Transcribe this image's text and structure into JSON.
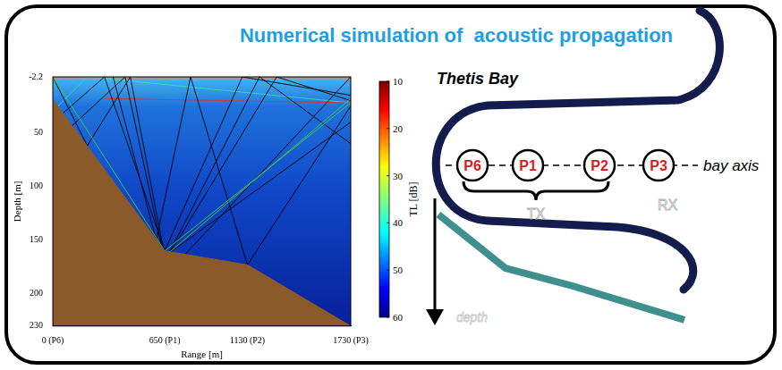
{
  "title": "Numerical simulation of  acoustic propagation",
  "chart_data": {
    "type": "line",
    "xlabel": "Range [m]",
    "ylabel": "Depth [m]",
    "xlim": [
      0,
      1730
    ],
    "xticks": [
      {
        "value": 0,
        "label": "0 (P6)"
      },
      {
        "value": 650,
        "label": "650 (P1)"
      },
      {
        "value": 1130,
        "label": "1130 (P2)"
      },
      {
        "value": 1730,
        "label": "1730 (P3)"
      }
    ],
    "ylim": [
      -2.2,
      230
    ],
    "yticks": [
      -2.2,
      50,
      100,
      150,
      200,
      230
    ],
    "grid": false,
    "seabed": {
      "color": "#8b5a2b",
      "x": [
        0,
        650,
        1130,
        1730
      ],
      "y": [
        19,
        160,
        173,
        230
      ]
    },
    "rays": [
      {
        "color": "#40d040",
        "x": [
          1730,
          650,
          0
        ],
        "y": [
          22,
          160,
          -2.2
        ]
      },
      {
        "color": "#40d040",
        "x": [
          650,
          1730
        ],
        "y": [
          165,
          18
        ]
      },
      {
        "color": "#000000",
        "x": [
          1730,
          1100,
          650,
          300,
          0
        ],
        "y": [
          15,
          -2.2,
          160,
          -2.2,
          40
        ]
      },
      {
        "color": "#000000",
        "x": [
          1730,
          650,
          450,
          200,
          0
        ],
        "y": [
          40,
          165,
          -2.2,
          62,
          -2.2
        ]
      },
      {
        "color": "#000000",
        "x": [
          1730,
          1300,
          650,
          420,
          0
        ],
        "y": [
          20,
          -2.2,
          170,
          -2.2,
          60
        ]
      },
      {
        "color": "#000000",
        "x": [
          650,
          1200,
          1730
        ],
        "y": [
          170,
          -2.2,
          60
        ]
      },
      {
        "color": "#000000",
        "x": [
          700,
          1730
        ],
        "y": [
          175,
          -2.2
        ]
      },
      {
        "color": "#000000",
        "x": [
          1730,
          1130,
          800,
          600,
          350
        ],
        "y": [
          25,
          173,
          -2.2,
          150,
          -2.2
        ]
      },
      {
        "color": "#e03030",
        "x": [
          300,
          1730
        ],
        "y": [
          18,
          22
        ]
      },
      {
        "color": "#30e0c0",
        "x": [
          1730,
          200,
          0
        ],
        "y": [
          22,
          -2.2,
          30
        ]
      }
    ],
    "colorbar": {
      "label": "TL [dB]",
      "range": [
        10,
        60
      ],
      "ticks": [
        10,
        20,
        30,
        40,
        50,
        60
      ]
    }
  },
  "diagram": {
    "bay_name": "Thetis Bay",
    "axis_label": "bay axis",
    "nodes": [
      "P6",
      "P1",
      "P2",
      "P3"
    ],
    "tx_label": "TX",
    "rx_label": "RX",
    "depth_label": "depth"
  }
}
